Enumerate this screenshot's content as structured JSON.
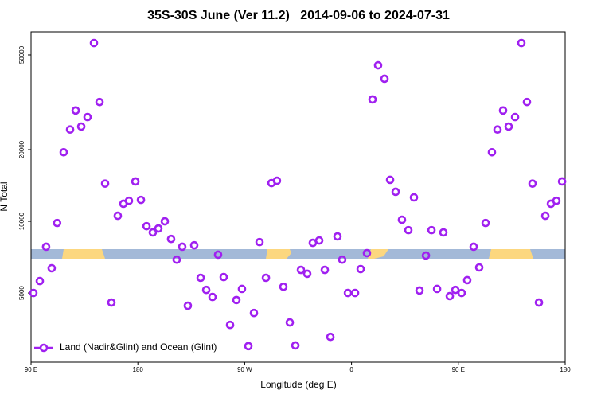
{
  "chart_data": {
    "type": "scatter",
    "title": "35S-30S June (Ver 11.2)   2014-09-06 to 2024-07-31",
    "x_label": "Longitude (deg E)",
    "y_label": "N Total",
    "log_y": true,
    "xlim": [
      90,
      540
    ],
    "ylim": [
      2560,
      62500
    ],
    "xticks": [
      {
        "value": 90,
        "label": "90 E"
      },
      180,
      {
        "value": 270,
        "label": "90 W"
      },
      {
        "value": 360,
        "label": "0"
      },
      {
        "value": 450,
        "label": "90 E"
      },
      {
        "value": 540,
        "label": "180"
      }
    ],
    "yticks": [
      5000,
      10000,
      20000,
      50000
    ],
    "legend": "lower left",
    "series": [
      {
        "name": "Land (Nadir&Glint) and Ocean (Glint)",
        "color": "#a020f0",
        "x": [
          92,
          97.4,
          102.7,
          107.4,
          112,
          117.5,
          122.9,
          127.6,
          132.3,
          137.6,
          143,
          147.7,
          152.4,
          157.7,
          163.1,
          167.8,
          172.5,
          177.9,
          182.6,
          187.3,
          192.6,
          197.3,
          202.7,
          208,
          212.7,
          217.4,
          222.1,
          227.5,
          232.9,
          237.6,
          242.9,
          247.6,
          252.3,
          257.7,
          263,
          267.7,
          273.1,
          277.8,
          282.5,
          287.9,
          292.6,
          297.2,
          302.6,
          308,
          312.7,
          317.4,
          322.7,
          327.4,
          332.8,
          337.5,
          342.2,
          348.2,
          352.2,
          357,
          363,
          367.7,
          373,
          377.7,
          382.4,
          387.8,
          392.5,
          397.2,
          402.5,
          407.9,
          412.6,
          417.3,
          422.7,
          427.4,
          432.1,
          437.4,
          442.8,
          447.5,
          452.8,
          457.5,
          462.9,
          467.6,
          473,
          478.3,
          483,
          487.7,
          492.4,
          497.8,
          503.1,
          507.8,
          512.5,
          517.9,
          523.3,
          528,
          532.6,
          537.4
        ],
        "values": [
          5000,
          5610,
          7820,
          6350,
          9840,
          19500,
          24300,
          29200,
          25000,
          27400,
          56100,
          31700,
          14400,
          4560,
          10550,
          11850,
          12200,
          14700,
          12300,
          9540,
          8980,
          9330,
          10000,
          8430,
          6900,
          7820,
          4420,
          7930,
          5790,
          5150,
          4810,
          7240,
          5830,
          3670,
          4670,
          5200,
          2990,
          4120,
          8180,
          5790,
          14470,
          14800,
          5310,
          3760,
          3010,
          6250,
          6020,
          8120,
          8310,
          6250,
          3270,
          8640,
          6900,
          5000,
          5000,
          6300,
          7350,
          32500,
          45200,
          39700,
          14930,
          13300,
          10150,
          9180,
          12600,
          5120,
          7180,
          9180,
          5200,
          8980,
          4850,
          5150,
          5000,
          5660,
          7820,
          6400,
          9840,
          19500,
          24300,
          29200,
          25000,
          27400,
          56100,
          31700,
          14400,
          4560,
          10550,
          11850,
          12200,
          14700
        ]
      }
    ]
  }
}
